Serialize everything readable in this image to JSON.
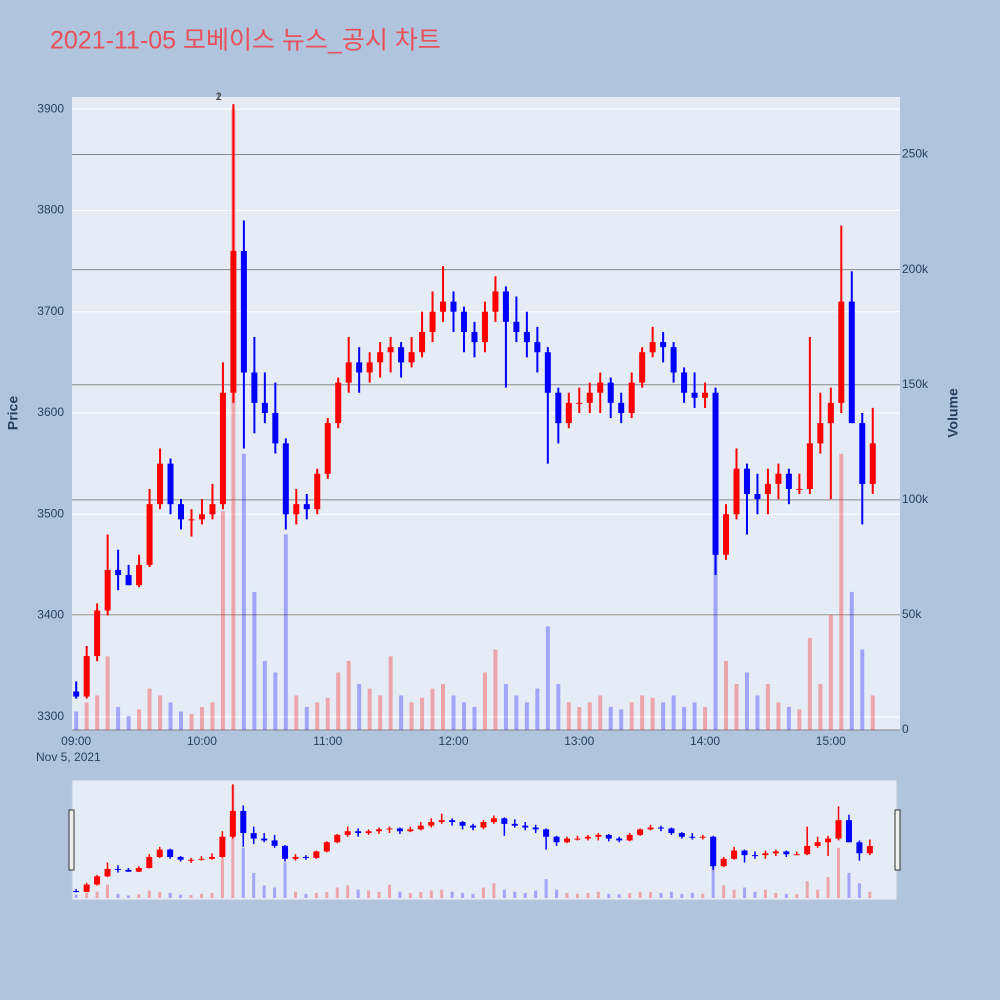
{
  "chart_data": {
    "type": "candlestick",
    "title": "2021-11-05 모베이스 뉴스_공시 차트",
    "ylabel": "Price",
    "y2label": "Volume",
    "x_date_label": "Nov 5, 2021",
    "increasing_color": "#ff0000",
    "decreasing_color": "#0000ff",
    "x": [
      "09:00",
      "09:05",
      "09:10",
      "09:15",
      "09:20",
      "09:25",
      "09:30",
      "09:35",
      "09:40",
      "09:45",
      "09:50",
      "09:55",
      "10:00",
      "10:05",
      "10:10",
      "10:15",
      "10:20",
      "10:25",
      "10:30",
      "10:35",
      "10:40",
      "10:45",
      "10:50",
      "10:55",
      "11:00",
      "11:05",
      "11:10",
      "11:15",
      "11:20",
      "11:25",
      "11:30",
      "11:35",
      "11:40",
      "11:45",
      "11:50",
      "11:55",
      "12:00",
      "12:05",
      "12:10",
      "12:15",
      "12:20",
      "12:25",
      "12:30",
      "12:35",
      "12:40",
      "12:45",
      "12:50",
      "12:55",
      "13:00",
      "13:05",
      "13:10",
      "13:15",
      "13:20",
      "13:25",
      "13:30",
      "13:35",
      "13:40",
      "13:45",
      "13:50",
      "13:55",
      "14:00",
      "14:05",
      "14:10",
      "14:15",
      "14:20",
      "14:25",
      "14:30",
      "14:35",
      "14:40",
      "14:45",
      "14:50",
      "14:55",
      "15:00",
      "15:05",
      "15:10",
      "15:15",
      "15:20"
    ],
    "open": [
      3325,
      3320,
      3360,
      3405,
      3445,
      3440,
      3430,
      3450,
      3510,
      3550,
      3510,
      3495,
      3495,
      3500,
      3510,
      3620,
      3760,
      3640,
      3610,
      3600,
      3570,
      3500,
      3510,
      3505,
      3540,
      3590,
      3630,
      3650,
      3640,
      3650,
      3660,
      3665,
      3650,
      3660,
      3680,
      3700,
      3710,
      3700,
      3680,
      3670,
      3700,
      3720,
      3690,
      3680,
      3670,
      3660,
      3620,
      3590,
      3610,
      3610,
      3620,
      3630,
      3610,
      3600,
      3630,
      3660,
      3670,
      3665,
      3640,
      3620,
      3615,
      3620,
      3460,
      3500,
      3545,
      3520,
      3520,
      3530,
      3540,
      3525,
      3525,
      3570,
      3590,
      3610,
      3710,
      3590,
      3530
    ],
    "high": [
      3335,
      3370,
      3412,
      3480,
      3465,
      3450,
      3460,
      3525,
      3565,
      3555,
      3515,
      3505,
      3515,
      3530,
      3650,
      3905,
      3790,
      3675,
      3640,
      3630,
      3575,
      3525,
      3520,
      3545,
      3595,
      3635,
      3675,
      3665,
      3660,
      3670,
      3675,
      3670,
      3675,
      3700,
      3720,
      3745,
      3720,
      3705,
      3690,
      3710,
      3735,
      3725,
      3715,
      3700,
      3685,
      3665,
      3625,
      3620,
      3625,
      3630,
      3640,
      3635,
      3620,
      3640,
      3665,
      3685,
      3680,
      3670,
      3645,
      3640,
      3630,
      3625,
      3510,
      3565,
      3550,
      3540,
      3545,
      3550,
      3545,
      3540,
      3675,
      3620,
      3625,
      3785,
      3740,
      3600,
      3605
    ],
    "low": [
      3318,
      3318,
      3355,
      3400,
      3425,
      3430,
      3428,
      3448,
      3505,
      3500,
      3485,
      3478,
      3490,
      3495,
      3505,
      3610,
      3565,
      3580,
      3590,
      3560,
      3485,
      3490,
      3495,
      3500,
      3535,
      3585,
      3620,
      3620,
      3630,
      3635,
      3640,
      3635,
      3645,
      3655,
      3670,
      3690,
      3680,
      3660,
      3655,
      3660,
      3690,
      3625,
      3670,
      3655,
      3640,
      3550,
      3570,
      3585,
      3600,
      3600,
      3600,
      3595,
      3590,
      3595,
      3625,
      3655,
      3650,
      3630,
      3610,
      3605,
      3605,
      3440,
      3455,
      3495,
      3480,
      3500,
      3500,
      3515,
      3510,
      3520,
      3520,
      3560,
      3515,
      3600,
      3590,
      3490,
      3520
    ],
    "close": [
      3320,
      3360,
      3405,
      3445,
      3440,
      3430,
      3450,
      3510,
      3550,
      3510,
      3495,
      3495,
      3500,
      3510,
      3620,
      3760,
      3640,
      3610,
      3600,
      3570,
      3500,
      3510,
      3505,
      3540,
      3590,
      3630,
      3650,
      3640,
      3650,
      3660,
      3665,
      3650,
      3660,
      3680,
      3700,
      3710,
      3700,
      3680,
      3670,
      3700,
      3720,
      3690,
      3680,
      3670,
      3660,
      3620,
      3590,
      3610,
      3610,
      3620,
      3630,
      3610,
      3600,
      3630,
      3660,
      3670,
      3665,
      3640,
      3620,
      3615,
      3620,
      3460,
      3500,
      3545,
      3520,
      3515,
      3530,
      3540,
      3525,
      3525,
      3570,
      3590,
      3610,
      3710,
      3590,
      3530,
      3570
    ],
    "volume": [
      8000,
      12000,
      15000,
      32000,
      10000,
      6000,
      9000,
      18000,
      15000,
      12000,
      8000,
      7000,
      10000,
      12000,
      95000,
      270000,
      120000,
      60000,
      30000,
      25000,
      85000,
      15000,
      10000,
      12000,
      14000,
      25000,
      30000,
      20000,
      18000,
      15000,
      32000,
      15000,
      12000,
      14000,
      18000,
      20000,
      15000,
      12000,
      10000,
      25000,
      35000,
      20000,
      15000,
      12000,
      18000,
      45000,
      20000,
      12000,
      10000,
      12000,
      15000,
      10000,
      9000,
      12000,
      15000,
      14000,
      12000,
      15000,
      10000,
      12000,
      10000,
      95000,
      30000,
      20000,
      25000,
      15000,
      20000,
      12000,
      10000,
      9000,
      40000,
      20000,
      50000,
      120000,
      60000,
      35000,
      15000
    ],
    "xlim": [
      "08:58",
      "15:33"
    ],
    "xticks": [
      "09:00",
      "10:00",
      "11:00",
      "12:00",
      "13:00",
      "14:00",
      "15:00"
    ],
    "ylim": [
      3287,
      3912
    ],
    "yticks": [
      3300,
      3400,
      3500,
      3600,
      3700,
      3800,
      3900
    ],
    "y2lim": [
      0,
      275000
    ],
    "y2ticks": [
      0,
      {
        "value": 50000,
        "label": "50k"
      },
      {
        "value": 100000,
        "label": "100k"
      },
      {
        "value": 150000,
        "label": "150k"
      },
      {
        "value": 200000,
        "label": "200k"
      },
      {
        "value": 250000,
        "label": "250k"
      }
    ],
    "annotations": [
      {
        "x": "10:08",
        "text": "1"
      },
      {
        "x": "10:08",
        "text": "2"
      }
    ],
    "rangeslider": true
  }
}
